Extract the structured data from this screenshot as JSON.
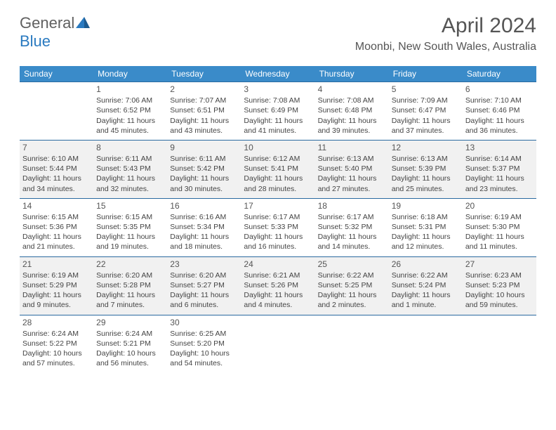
{
  "brand": {
    "part1": "General",
    "part2": "Blue"
  },
  "title": "April 2024",
  "location": "Moonbi, New South Wales, Australia",
  "colors": {
    "header_bg": "#3a8bc9",
    "row_border": "#2a6aa0",
    "alt_row_bg": "#f1f1f1",
    "text": "#444444",
    "title_text": "#555555"
  },
  "day_headers": [
    "Sunday",
    "Monday",
    "Tuesday",
    "Wednesday",
    "Thursday",
    "Friday",
    "Saturday"
  ],
  "weeks": [
    {
      "shade": "odd",
      "cells": [
        null,
        {
          "n": "1",
          "sr": "Sunrise: 7:06 AM",
          "ss": "Sunset: 6:52 PM",
          "d1": "Daylight: 11 hours",
          "d2": "and 45 minutes."
        },
        {
          "n": "2",
          "sr": "Sunrise: 7:07 AM",
          "ss": "Sunset: 6:51 PM",
          "d1": "Daylight: 11 hours",
          "d2": "and 43 minutes."
        },
        {
          "n": "3",
          "sr": "Sunrise: 7:08 AM",
          "ss": "Sunset: 6:49 PM",
          "d1": "Daylight: 11 hours",
          "d2": "and 41 minutes."
        },
        {
          "n": "4",
          "sr": "Sunrise: 7:08 AM",
          "ss": "Sunset: 6:48 PM",
          "d1": "Daylight: 11 hours",
          "d2": "and 39 minutes."
        },
        {
          "n": "5",
          "sr": "Sunrise: 7:09 AM",
          "ss": "Sunset: 6:47 PM",
          "d1": "Daylight: 11 hours",
          "d2": "and 37 minutes."
        },
        {
          "n": "6",
          "sr": "Sunrise: 7:10 AM",
          "ss": "Sunset: 6:46 PM",
          "d1": "Daylight: 11 hours",
          "d2": "and 36 minutes."
        }
      ]
    },
    {
      "shade": "even",
      "cells": [
        {
          "n": "7",
          "sr": "Sunrise: 6:10 AM",
          "ss": "Sunset: 5:44 PM",
          "d1": "Daylight: 11 hours",
          "d2": "and 34 minutes."
        },
        {
          "n": "8",
          "sr": "Sunrise: 6:11 AM",
          "ss": "Sunset: 5:43 PM",
          "d1": "Daylight: 11 hours",
          "d2": "and 32 minutes."
        },
        {
          "n": "9",
          "sr": "Sunrise: 6:11 AM",
          "ss": "Sunset: 5:42 PM",
          "d1": "Daylight: 11 hours",
          "d2": "and 30 minutes."
        },
        {
          "n": "10",
          "sr": "Sunrise: 6:12 AM",
          "ss": "Sunset: 5:41 PM",
          "d1": "Daylight: 11 hours",
          "d2": "and 28 minutes."
        },
        {
          "n": "11",
          "sr": "Sunrise: 6:13 AM",
          "ss": "Sunset: 5:40 PM",
          "d1": "Daylight: 11 hours",
          "d2": "and 27 minutes."
        },
        {
          "n": "12",
          "sr": "Sunrise: 6:13 AM",
          "ss": "Sunset: 5:39 PM",
          "d1": "Daylight: 11 hours",
          "d2": "and 25 minutes."
        },
        {
          "n": "13",
          "sr": "Sunrise: 6:14 AM",
          "ss": "Sunset: 5:37 PM",
          "d1": "Daylight: 11 hours",
          "d2": "and 23 minutes."
        }
      ]
    },
    {
      "shade": "odd",
      "cells": [
        {
          "n": "14",
          "sr": "Sunrise: 6:15 AM",
          "ss": "Sunset: 5:36 PM",
          "d1": "Daylight: 11 hours",
          "d2": "and 21 minutes."
        },
        {
          "n": "15",
          "sr": "Sunrise: 6:15 AM",
          "ss": "Sunset: 5:35 PM",
          "d1": "Daylight: 11 hours",
          "d2": "and 19 minutes."
        },
        {
          "n": "16",
          "sr": "Sunrise: 6:16 AM",
          "ss": "Sunset: 5:34 PM",
          "d1": "Daylight: 11 hours",
          "d2": "and 18 minutes."
        },
        {
          "n": "17",
          "sr": "Sunrise: 6:17 AM",
          "ss": "Sunset: 5:33 PM",
          "d1": "Daylight: 11 hours",
          "d2": "and 16 minutes."
        },
        {
          "n": "18",
          "sr": "Sunrise: 6:17 AM",
          "ss": "Sunset: 5:32 PM",
          "d1": "Daylight: 11 hours",
          "d2": "and 14 minutes."
        },
        {
          "n": "19",
          "sr": "Sunrise: 6:18 AM",
          "ss": "Sunset: 5:31 PM",
          "d1": "Daylight: 11 hours",
          "d2": "and 12 minutes."
        },
        {
          "n": "20",
          "sr": "Sunrise: 6:19 AM",
          "ss": "Sunset: 5:30 PM",
          "d1": "Daylight: 11 hours",
          "d2": "and 11 minutes."
        }
      ]
    },
    {
      "shade": "even",
      "cells": [
        {
          "n": "21",
          "sr": "Sunrise: 6:19 AM",
          "ss": "Sunset: 5:29 PM",
          "d1": "Daylight: 11 hours",
          "d2": "and 9 minutes."
        },
        {
          "n": "22",
          "sr": "Sunrise: 6:20 AM",
          "ss": "Sunset: 5:28 PM",
          "d1": "Daylight: 11 hours",
          "d2": "and 7 minutes."
        },
        {
          "n": "23",
          "sr": "Sunrise: 6:20 AM",
          "ss": "Sunset: 5:27 PM",
          "d1": "Daylight: 11 hours",
          "d2": "and 6 minutes."
        },
        {
          "n": "24",
          "sr": "Sunrise: 6:21 AM",
          "ss": "Sunset: 5:26 PM",
          "d1": "Daylight: 11 hours",
          "d2": "and 4 minutes."
        },
        {
          "n": "25",
          "sr": "Sunrise: 6:22 AM",
          "ss": "Sunset: 5:25 PM",
          "d1": "Daylight: 11 hours",
          "d2": "and 2 minutes."
        },
        {
          "n": "26",
          "sr": "Sunrise: 6:22 AM",
          "ss": "Sunset: 5:24 PM",
          "d1": "Daylight: 11 hours",
          "d2": "and 1 minute."
        },
        {
          "n": "27",
          "sr": "Sunrise: 6:23 AM",
          "ss": "Sunset: 5:23 PM",
          "d1": "Daylight: 10 hours",
          "d2": "and 59 minutes."
        }
      ]
    },
    {
      "shade": "odd",
      "cells": [
        {
          "n": "28",
          "sr": "Sunrise: 6:24 AM",
          "ss": "Sunset: 5:22 PM",
          "d1": "Daylight: 10 hours",
          "d2": "and 57 minutes."
        },
        {
          "n": "29",
          "sr": "Sunrise: 6:24 AM",
          "ss": "Sunset: 5:21 PM",
          "d1": "Daylight: 10 hours",
          "d2": "and 56 minutes."
        },
        {
          "n": "30",
          "sr": "Sunrise: 6:25 AM",
          "ss": "Sunset: 5:20 PM",
          "d1": "Daylight: 10 hours",
          "d2": "and 54 minutes."
        },
        null,
        null,
        null,
        null
      ]
    }
  ]
}
